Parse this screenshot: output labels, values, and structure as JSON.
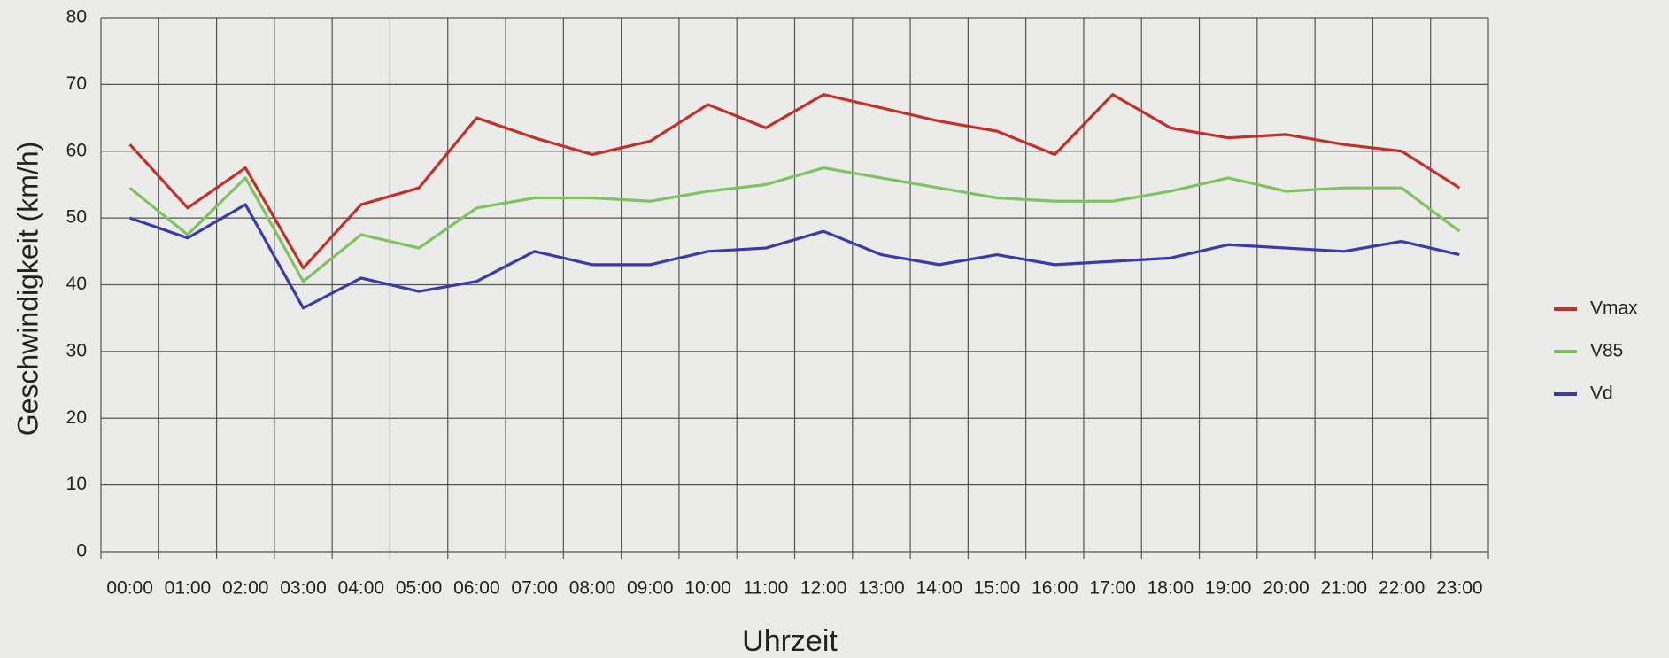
{
  "chart_data": {
    "type": "line",
    "x_label": "Uhrzeit",
    "y_label": "Geschwindigkeit (km/h)",
    "categories": [
      "00:00",
      "01:00",
      "02:00",
      "03:00",
      "04:00",
      "05:00",
      "06:00",
      "07:00",
      "08:00",
      "09:00",
      "10:00",
      "11:00",
      "12:00",
      "13:00",
      "14:00",
      "15:00",
      "16:00",
      "17:00",
      "18:00",
      "19:00",
      "20:00",
      "21:00",
      "22:00",
      "23:00"
    ],
    "series": [
      {
        "name": "Vmax",
        "color": "#c3302a",
        "values": [
          61,
          51.5,
          57.5,
          42.5,
          52,
          54.5,
          65,
          62,
          59.5,
          61.5,
          67,
          63.5,
          68.5,
          66.5,
          64.5,
          63,
          59.5,
          68.5,
          63.5,
          62,
          62.5,
          61,
          60,
          54.5
        ]
      },
      {
        "name": "V85",
        "color": "#7fc262",
        "values": [
          54.5,
          47.5,
          56,
          40.5,
          47.5,
          45.5,
          51.5,
          53,
          53,
          52.5,
          54,
          55,
          57.5,
          56,
          54.5,
          53,
          52.5,
          52.5,
          54,
          56,
          54,
          54.5,
          54.5,
          48
        ]
      },
      {
        "name": "Vd",
        "color": "#3b3aa8",
        "values": [
          50,
          47,
          52,
          36.5,
          41,
          39,
          40.5,
          45,
          43,
          43,
          45,
          45.5,
          48,
          44.5,
          43,
          44.5,
          43,
          43.5,
          44,
          46,
          45.5,
          45,
          46.5,
          44.5
        ]
      }
    ],
    "ylim": [
      0,
      80
    ],
    "yticks": [
      0,
      10,
      20,
      30,
      40,
      50,
      60,
      70,
      80
    ],
    "grid": true,
    "legend": "right"
  }
}
